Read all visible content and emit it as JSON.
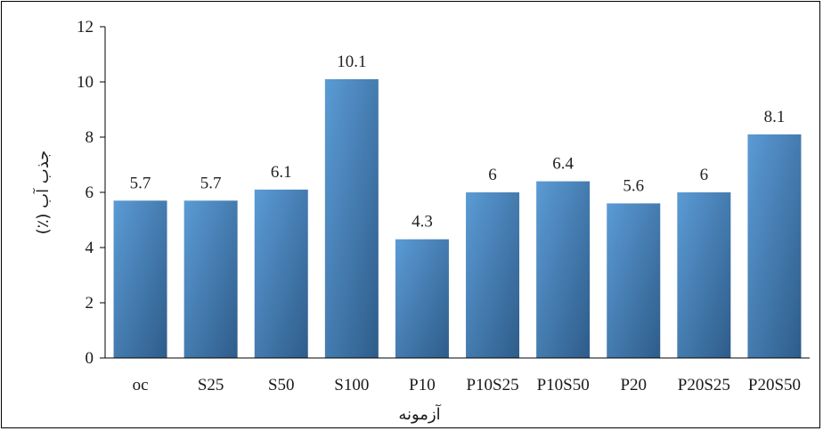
{
  "chart_data": {
    "type": "bar",
    "categories": [
      "oc",
      "S25",
      "S50",
      "S100",
      "P10",
      "P10S25",
      "P10S50",
      "P20",
      "P20S25",
      "P20S50"
    ],
    "values": [
      5.7,
      5.7,
      6.1,
      10.1,
      4.3,
      6,
      6.4,
      5.6,
      6,
      8.1
    ],
    "data_labels": [
      "5.7",
      "5.7",
      "6.1",
      "10.1",
      "4.3",
      "6",
      "6.4",
      "5.6",
      "6",
      "8.1"
    ],
    "xlabel": "آزمونه",
    "ylabel": "جذب آب (٪)",
    "ylim": [
      0,
      12
    ],
    "yticks": [
      0,
      2,
      4,
      6,
      8,
      10,
      12
    ],
    "ytick_labels": [
      "0",
      "2",
      "4",
      "6",
      "8",
      "10",
      "12"
    ],
    "grid": false,
    "legend": "none",
    "colors": {
      "bar_top": "#5B9BD5",
      "bar_bottom": "#2E5C8A",
      "axis": "#000000"
    }
  }
}
